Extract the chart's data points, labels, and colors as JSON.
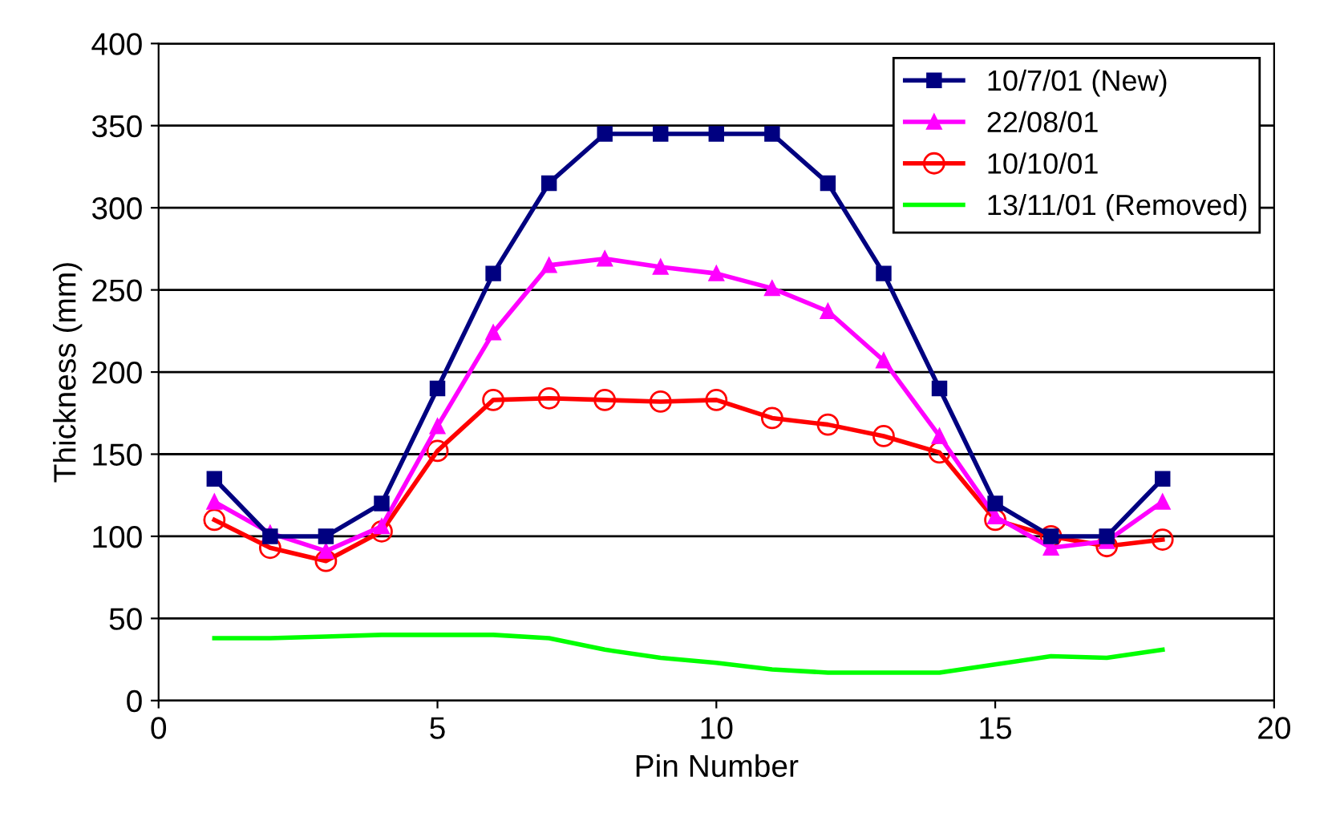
{
  "chart_data": {
    "type": "line",
    "xlabel": "Pin Number",
    "ylabel": "Thickness (mm)",
    "x": [
      1,
      2,
      3,
      4,
      5,
      6,
      7,
      8,
      9,
      10,
      11,
      12,
      13,
      14,
      15,
      16,
      17,
      18
    ],
    "series": [
      {
        "name": "10/7/01 (New)",
        "color": "#000080",
        "marker": "square",
        "values": [
          135,
          100,
          100,
          120,
          190,
          260,
          315,
          345,
          345,
          345,
          345,
          315,
          260,
          190,
          120,
          100,
          100,
          135
        ]
      },
      {
        "name": "22/08/01",
        "color": "#ff00ff",
        "marker": "triangle",
        "values": [
          121,
          102,
          91,
          106,
          167,
          224,
          265,
          269,
          264,
          260,
          251,
          237,
          207,
          161,
          112,
          93,
          97,
          121
        ]
      },
      {
        "name": "10/10/01",
        "color": "#ff0000",
        "marker": "circle",
        "values": [
          110,
          93,
          85,
          103,
          152,
          183,
          184,
          183,
          182,
          183,
          172,
          168,
          161,
          151,
          110,
          100,
          94,
          98
        ]
      },
      {
        "name": "13/11/01 (Removed)",
        "color": "#00ff00",
        "marker": "none",
        "values": [
          38,
          38,
          39,
          40,
          40,
          40,
          38,
          31,
          26,
          23,
          19,
          17,
          17,
          17,
          22,
          27,
          26,
          31
        ]
      }
    ],
    "xlim": [
      0,
      20
    ],
    "xticks": [
      0,
      5,
      10,
      15,
      20
    ],
    "ylim": [
      0,
      400
    ],
    "yticks": [
      0,
      50,
      100,
      150,
      200,
      250,
      300,
      350,
      400
    ],
    "grid": "y",
    "legend": "top right"
  }
}
